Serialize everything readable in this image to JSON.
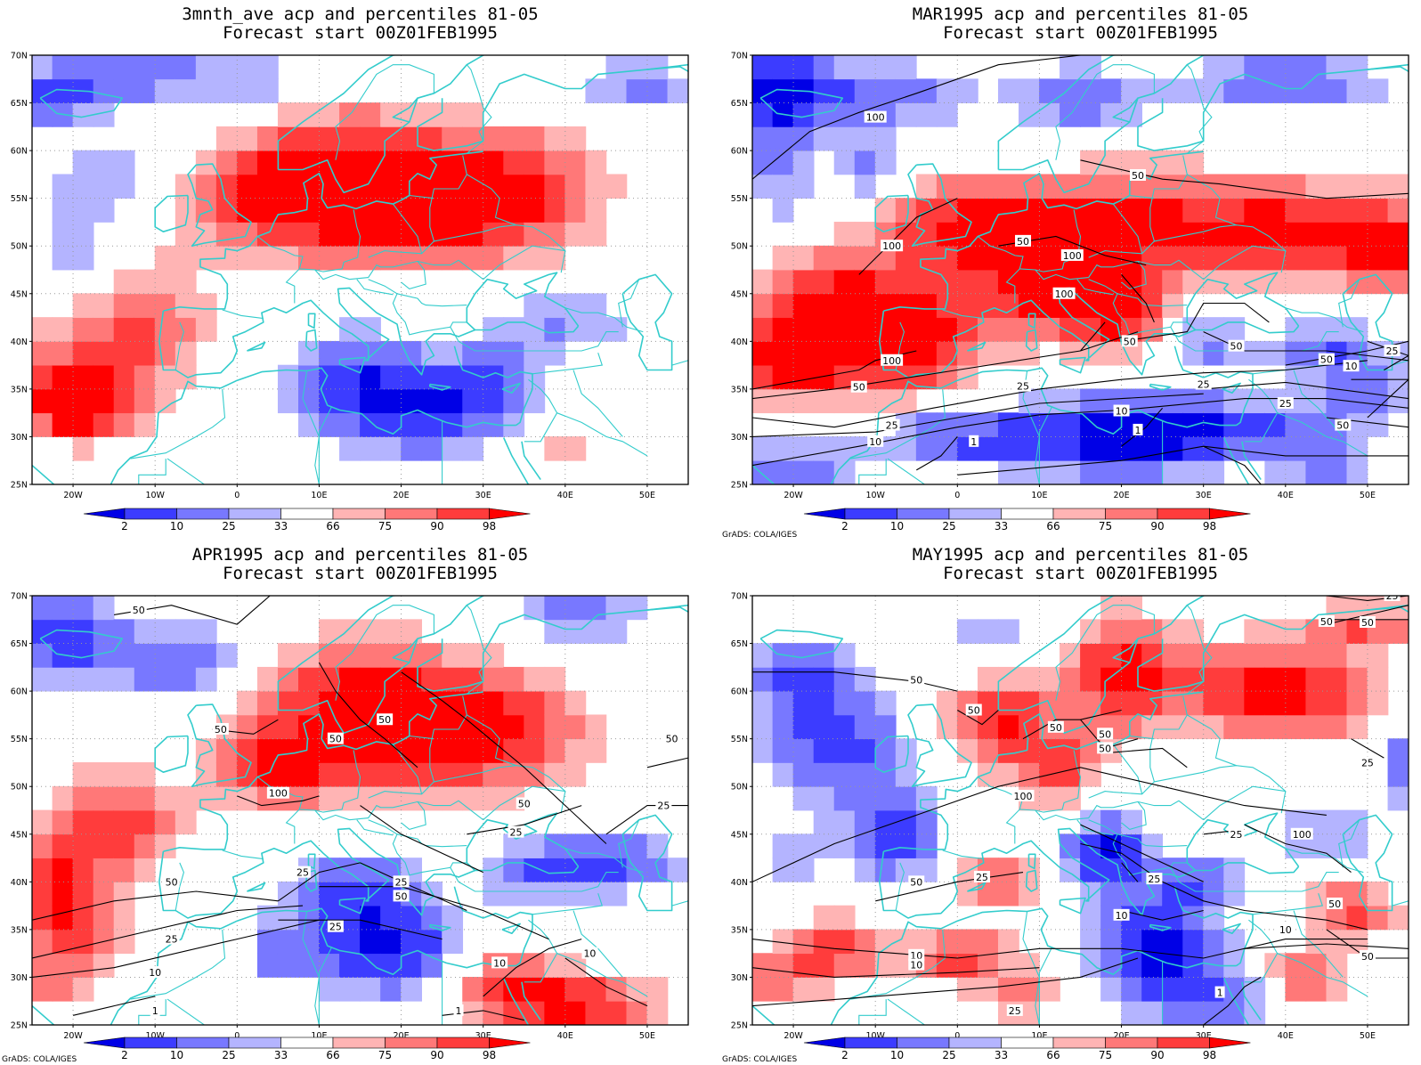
{
  "panels": [
    {
      "id": "p1",
      "title_line1": "3mnth_ave acp and percentiles 81-05",
      "title_line2": "Forecast start 00Z01FEB1995",
      "footer": "",
      "pattern": "mean",
      "contours": []
    },
    {
      "id": "p2",
      "title_line1": "MAR1995 acp and percentiles 81-05",
      "title_line2": "Forecast start 00Z01FEB1995",
      "footer": "GrADS: COLA/IGES",
      "pattern": "mar",
      "contours": [
        "100",
        "50",
        "100",
        "50",
        "100",
        "100",
        "50",
        "100",
        "50",
        "50",
        "25",
        "50",
        "25",
        "10",
        "25",
        "10",
        "1",
        "1",
        "25",
        "10",
        "50",
        "25"
      ]
    },
    {
      "id": "p3",
      "title_line1": "APR1995 acp and percentiles 81-05",
      "title_line2": "Forecast start 00Z01FEB1995",
      "footer": "GrADS: COLA/IGES",
      "pattern": "apr",
      "contours": [
        "50",
        "50",
        "50",
        "50",
        "100",
        "50",
        "25",
        "50",
        "25",
        "25",
        "50",
        "25",
        "10",
        "25",
        "10",
        "10",
        "1",
        "1",
        "25",
        "50"
      ]
    },
    {
      "id": "p4",
      "title_line1": "MAY1995 acp and percentiles 81-05",
      "title_line2": "Forecast start 00Z01FEB1995",
      "footer": "GrADS: COLA/IGES",
      "pattern": "may",
      "contours": [
        "25",
        "50",
        "50",
        "50",
        "50",
        "50",
        "50",
        "50",
        "100",
        "50",
        "25",
        "100",
        "25",
        "50",
        "25",
        "10",
        "10",
        "25",
        "10",
        "1",
        "10",
        "50",
        "25"
      ]
    }
  ],
  "lat_labels": [
    "70N",
    "65N",
    "60N",
    "55N",
    "50N",
    "45N",
    "40N",
    "35N",
    "30N",
    "25N"
  ],
  "lon_labels": [
    "20W",
    "10W",
    "0",
    "10E",
    "20E",
    "30E",
    "40E",
    "50E"
  ],
  "colorbar": {
    "labels": [
      "2",
      "10",
      "25",
      "33",
      "66",
      "75",
      "90",
      "98"
    ],
    "colors": [
      "#0000e6",
      "#3c3cff",
      "#7878ff",
      "#b4b4ff",
      "#ffffff",
      "#ffb4b4",
      "#ff7878",
      "#ff3c3c",
      "#ff0000"
    ]
  },
  "colors": {
    "coastline": "#33cccc",
    "contour": "#000000",
    "grid": "#999999"
  }
}
